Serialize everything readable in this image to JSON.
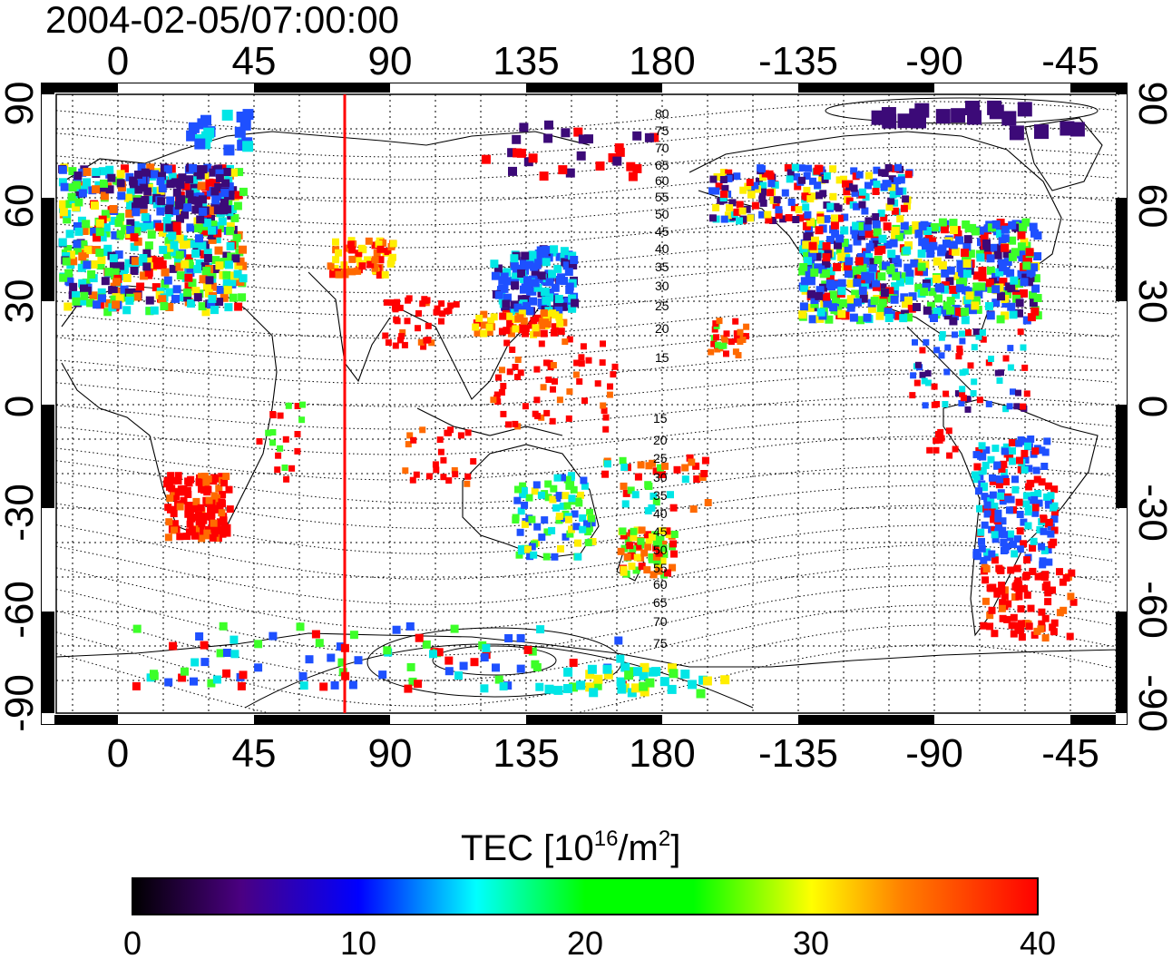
{
  "title": "2004-02-05/07:00:00",
  "axes": {
    "lon_ticks": [
      "0",
      "45",
      "90",
      "135",
      "180",
      "-135",
      "-90",
      "-45"
    ],
    "lat_ticks": [
      "90",
      "60",
      "30",
      "0",
      "-30",
      "-60",
      "-90"
    ]
  },
  "contour_labels": [
    "80",
    "75",
    "70",
    "65",
    "60",
    "55",
    "50",
    "45",
    "40",
    "35",
    "30",
    "25",
    "20",
    "15",
    "15",
    "20",
    "25",
    "30",
    "35",
    "40",
    "45",
    "50",
    "55",
    "60",
    "65",
    "70",
    "75"
  ],
  "marker_line": {
    "longitude": 75,
    "color": "#ff0000"
  },
  "colorbar": {
    "label_main": "TEC  [10",
    "label_sup1": "16",
    "label_mid": "/m",
    "label_sup2": "2",
    "label_end": "]",
    "ticks": [
      "0",
      "10",
      "20",
      "30",
      "40"
    ],
    "range": [
      0,
      40
    ],
    "colors": [
      "#000000",
      "#4b0082",
      "#0000ff",
      "#00ffff",
      "#00ff00",
      "#ffff00",
      "#ff8000",
      "#ff0000"
    ]
  },
  "legend_colors": {
    "low": "#3c0a78",
    "mid_low": "#1e50ff",
    "mid": "#00e6e6",
    "mid_high": "#3cff28",
    "high": "#ffee00",
    "very_high": "#ff6a00",
    "max": "#ff0000"
  }
}
